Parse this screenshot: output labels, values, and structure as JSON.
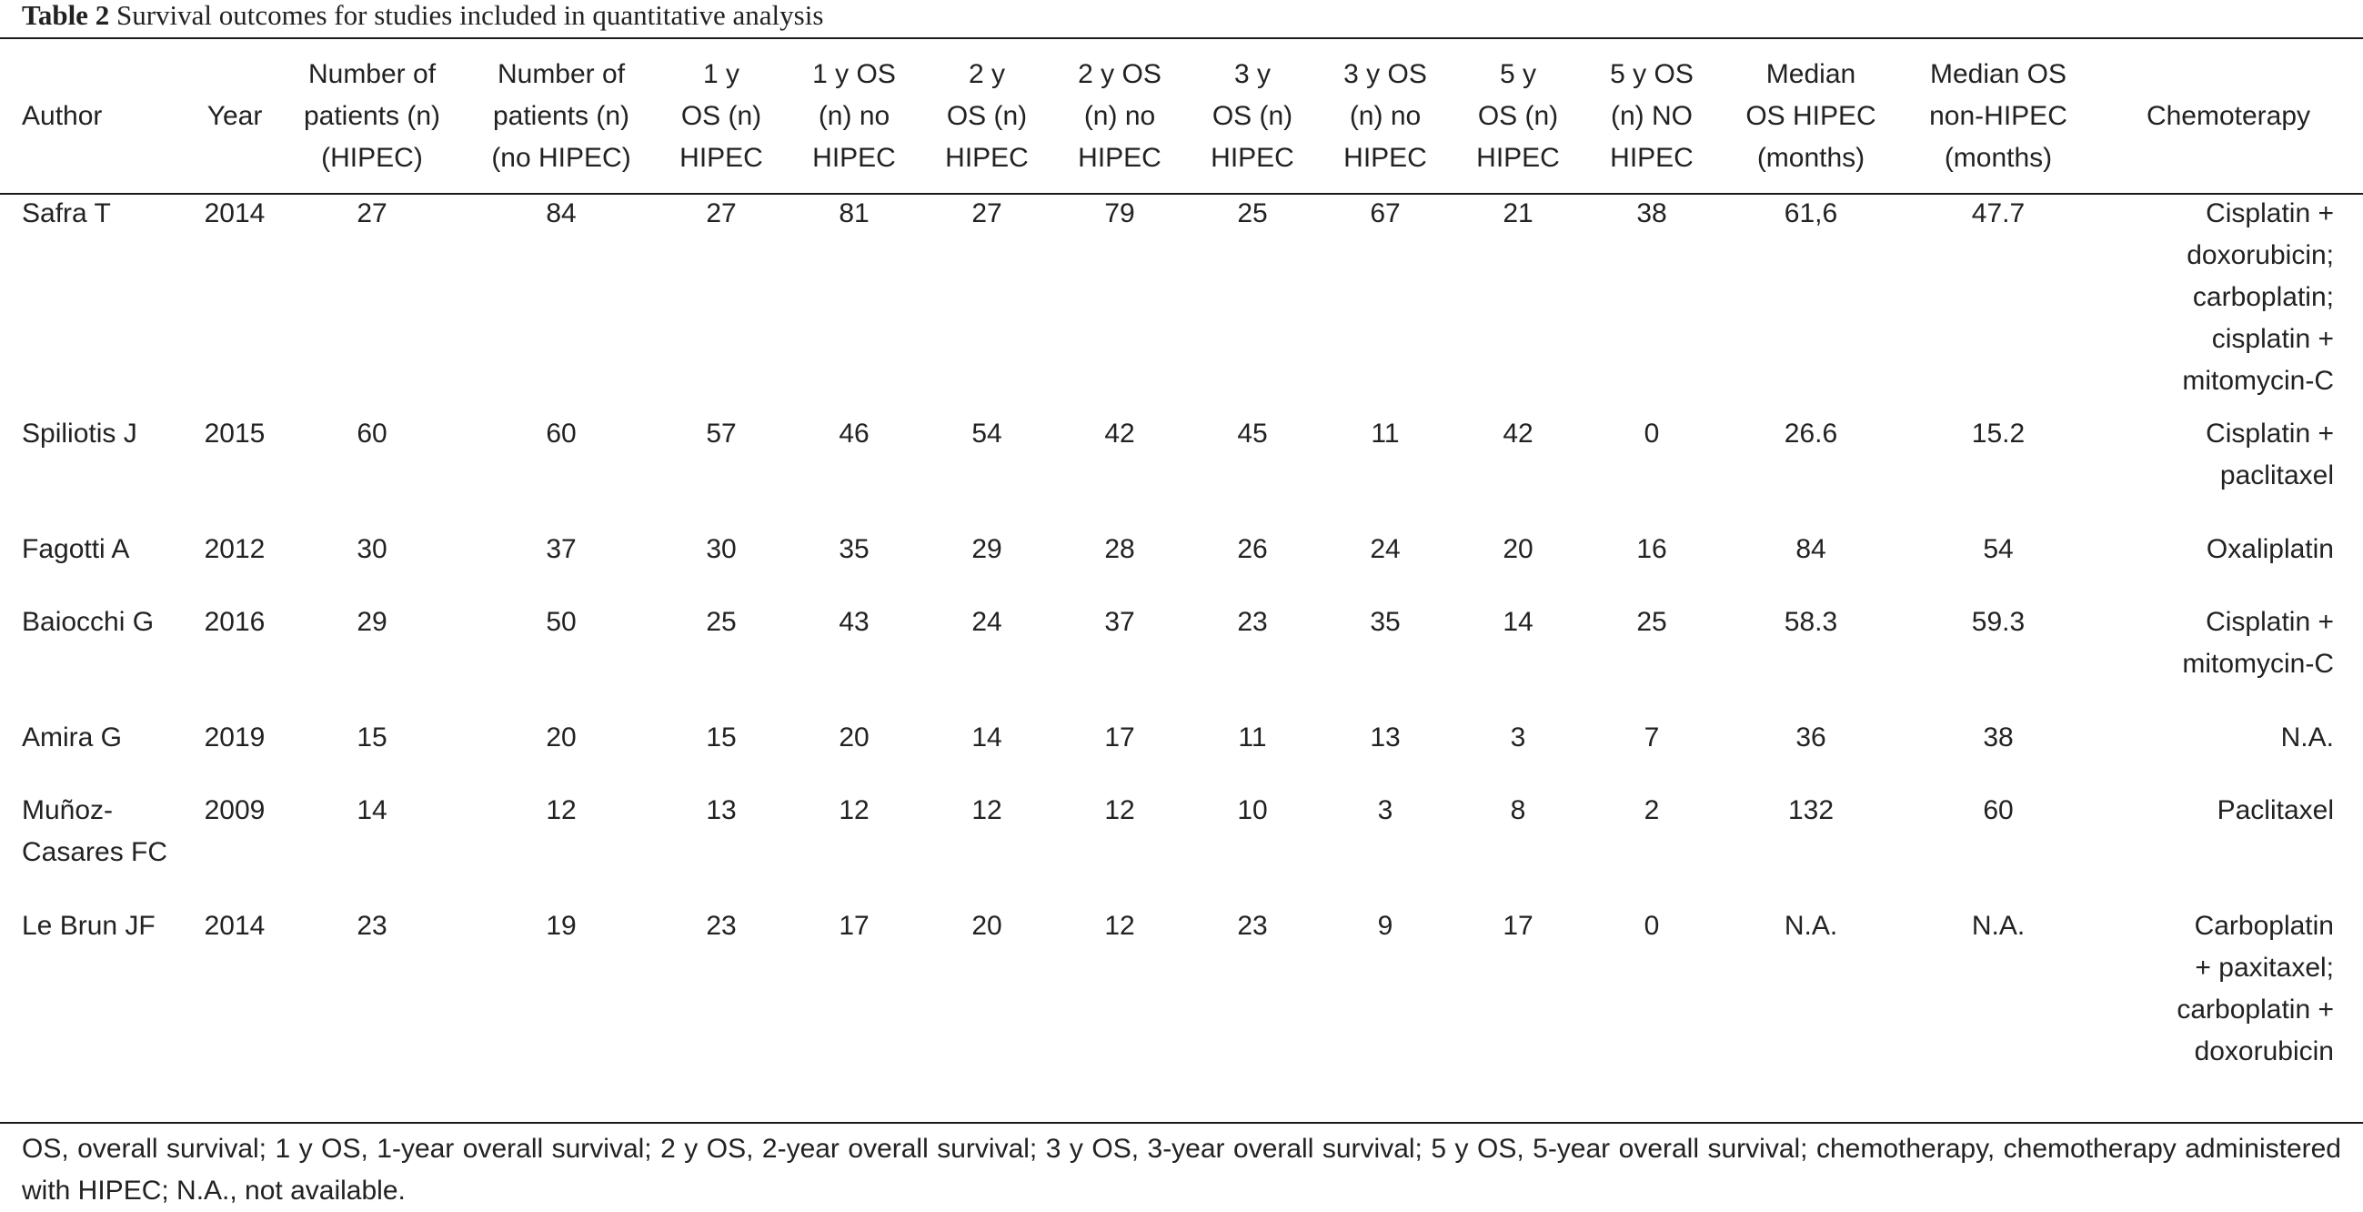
{
  "caption": {
    "label": "Table 2",
    "text": "Survival outcomes for studies included in quantitative analysis"
  },
  "headers": [
    "Author",
    "Year",
    "Number of\npatients (n)\n(HIPEC)",
    "Number of\npatients (n)\n(no HIPEC)",
    "1 y\nOS (n)\nHIPEC",
    "1 y OS\n(n) no\nHIPEC",
    "2 y\nOS (n)\nHIPEC",
    "2 y OS\n(n) no\nHIPEC",
    "3 y\nOS (n)\nHIPEC",
    "3 y OS\n(n) no\nHIPEC",
    "5 y\nOS (n)\nHIPEC",
    "5 y OS\n(n) NO\nHIPEC",
    "Median\nOS HIPEC\n(months)",
    "Median OS\nnon-HIPEC\n(months)",
    "Chemoterapy"
  ],
  "rows": [
    [
      "Safra T",
      "2014",
      "27",
      "84",
      "27",
      "81",
      "27",
      "79",
      "25",
      "67",
      "21",
      "38",
      "61,6",
      "47.7",
      "Cisplatin +\ndoxorubicin;\ncarboplatin;\ncisplatin +\nmitomycin-C"
    ],
    [
      "Spiliotis J",
      "2015",
      "60",
      "60",
      "57",
      "46",
      "54",
      "42",
      "45",
      "11",
      "42",
      "0",
      "26.6",
      "15.2",
      "Cisplatin +\npaclitaxel"
    ],
    [
      "Fagotti A",
      "2012",
      "30",
      "37",
      "30",
      "35",
      "29",
      "28",
      "26",
      "24",
      "20",
      "16",
      "84",
      "54",
      "Oxaliplatin"
    ],
    [
      "Baiocchi G",
      "2016",
      "29",
      "50",
      "25",
      "43",
      "24",
      "37",
      "23",
      "35",
      "14",
      "25",
      "58.3",
      "59.3",
      "Cisplatin +\nmitomycin-C"
    ],
    [
      "Amira G",
      "2019",
      "15",
      "20",
      "15",
      "20",
      "14",
      "17",
      "11",
      "13",
      "3",
      "7",
      "36",
      "38",
      "N.A."
    ],
    [
      "Muñoz-\nCasares FC",
      "2009",
      "14",
      "12",
      "13",
      "12",
      "12",
      "12",
      "10",
      "3",
      "8",
      "2",
      "132",
      "60",
      "Paclitaxel"
    ],
    [
      "Le Brun JF",
      "2014",
      "23",
      "19",
      "23",
      "17",
      "20",
      "12",
      "23",
      "9",
      "17",
      "0",
      "N.A.",
      "N.A.",
      "Carboplatin\n+ paxitaxel;\ncarboplatin +\ndoxorubicin"
    ]
  ],
  "footnote": "OS, overall survival; 1 y OS, 1-year overall survival; 2 y OS, 2-year overall survival; 3 y OS, 3-year overall survival; 5 y OS, 5-year overall survival; chemotherapy, chemotherapy administered with HIPEC; N.A., not available."
}
